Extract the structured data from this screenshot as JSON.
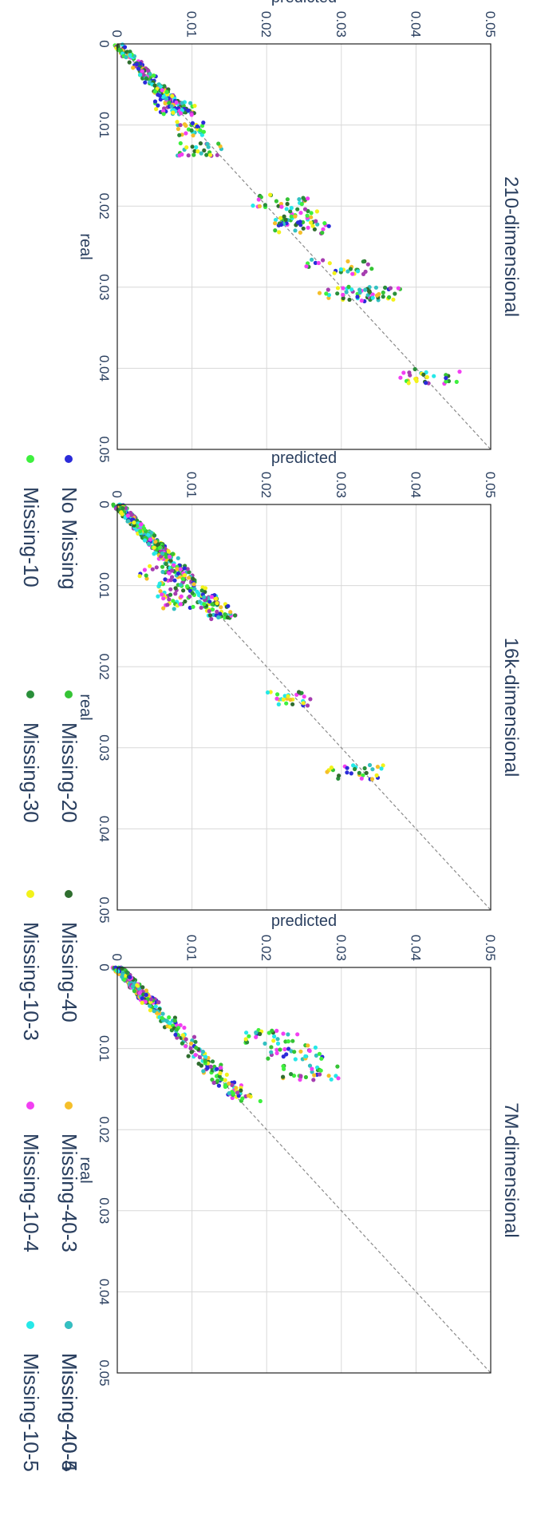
{
  "chart_data": {
    "type": "scatter",
    "orientation": "rotated-90-clockwise",
    "x_label": "real",
    "y_label": "predicted",
    "xlim": [
      0,
      0.05
    ],
    "ylim": [
      0,
      0.05
    ],
    "ticks": [
      "0",
      "0.01",
      "0.02",
      "0.03",
      "0.04",
      "0.05"
    ],
    "reference_line": "y = x (dashed)",
    "legend": [
      {
        "name": "No Missing",
        "color": "#2b2bd9"
      },
      {
        "name": "Missing-10",
        "color": "#3ef03e"
      },
      {
        "name": "Missing-20",
        "color": "#35c435"
      },
      {
        "name": "Missing-30",
        "color": "#2a8f3a"
      },
      {
        "name": "Missing-40",
        "color": "#2f6e2f"
      },
      {
        "name": "Missing-10-3",
        "color": "#f2f21a"
      },
      {
        "name": "Missing-40-3",
        "color": "#f5bf2a"
      },
      {
        "name": "Missing-10-4",
        "color": "#f23ff2"
      },
      {
        "name": "Missing-40-4",
        "color": "#a63db0"
      },
      {
        "name": "Missing-10-5",
        "color": "#26e8e8"
      },
      {
        "name": "Missing-40-5",
        "color": "#33c1c1"
      }
    ],
    "panels": [
      {
        "title": "210-dimensional",
        "clusters": [
          {
            "real": 0.041,
            "predicted": 0.042,
            "spread": 0.005
          },
          {
            "real": 0.031,
            "predicted": 0.032,
            "spread": 0.005
          },
          {
            "real": 0.0305,
            "predicted": 0.034,
            "spread": 0.004
          },
          {
            "real": 0.0275,
            "predicted": 0.03,
            "spread": 0.005
          },
          {
            "real": 0.0225,
            "predicted": 0.025,
            "spread": 0.004
          },
          {
            "real": 0.0215,
            "predicted": 0.024,
            "spread": 0.003
          },
          {
            "real": 0.0195,
            "predicted": 0.022,
            "spread": 0.004
          },
          {
            "real": 0.013,
            "predicted": 0.011,
            "spread": 0.003
          },
          {
            "real": 0.0105,
            "predicted": 0.01,
            "spread": 0.002
          },
          {
            "real": 0.008,
            "predicted": 0.008,
            "spread": 0.003
          },
          {
            "real": 0.004,
            "predicted": 0.004,
            "spread": 0.002
          }
        ]
      },
      {
        "title": "16k-dimensional",
        "clusters": [
          {
            "real": 0.033,
            "predicted": 0.032,
            "spread": 0.004
          },
          {
            "real": 0.024,
            "predicted": 0.023,
            "spread": 0.003
          },
          {
            "real": 0.012,
            "predicted": 0.009,
            "spread": 0.003
          },
          {
            "real": 0.0105,
            "predicted": 0.008,
            "spread": 0.003
          },
          {
            "real": 0.0085,
            "predicted": 0.006,
            "spread": 0.003
          },
          {
            "real": 0.0065,
            "predicted": 0.005,
            "spread": 0.003
          },
          {
            "real": 0.003,
            "predicted": 0.003,
            "spread": 0.002
          }
        ]
      },
      {
        "title": "7M-dimensional",
        "clusters": [
          {
            "real": 0.013,
            "predicted": 0.026,
            "spread": 0.004
          },
          {
            "real": 0.0105,
            "predicted": 0.024,
            "spread": 0.004
          },
          {
            "real": 0.0085,
            "predicted": 0.021,
            "spread": 0.004
          },
          {
            "real": 0.0075,
            "predicted": 0.018,
            "spread": 0.003
          },
          {
            "real": 0.002,
            "predicted": 0.004,
            "spread": 0.002
          }
        ]
      }
    ]
  }
}
